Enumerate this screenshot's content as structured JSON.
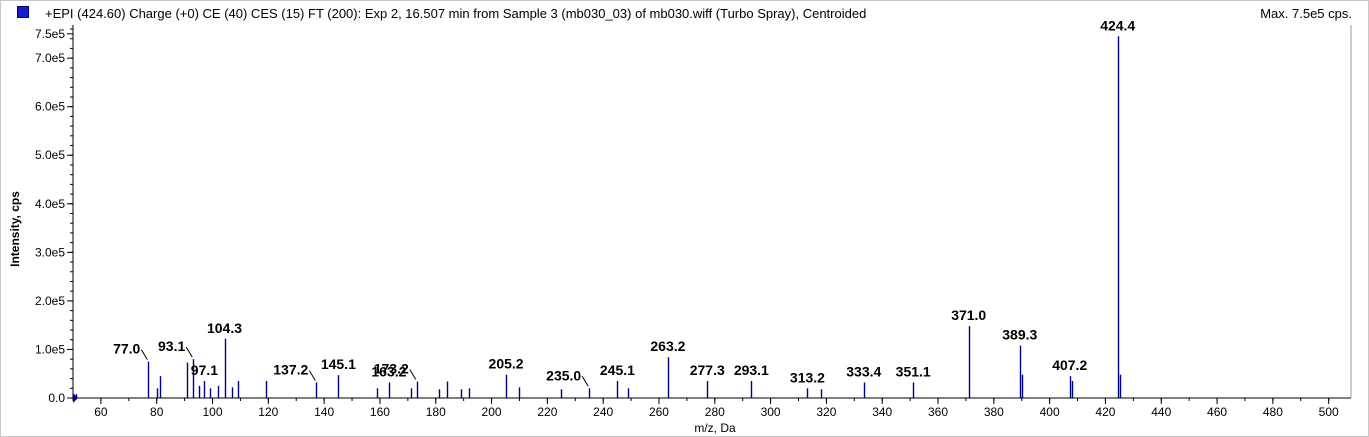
{
  "header": {
    "title": "+EPI (424.60) Charge (+0) CE (40) CES (15) FT (200): Exp 2, 16.507 min from Sample 3 (mb030_03) of mb030.wiff (Turbo Spray), Centroided",
    "max_label": "Max. 7.5e5 cps."
  },
  "chart_data": {
    "type": "bar",
    "xlabel": "m/z, Da",
    "ylabel": "Intensity, cps",
    "xlim": [
      50,
      508
    ],
    "ylim": [
      0,
      760000
    ],
    "x_ticks": [
      60,
      80,
      100,
      120,
      140,
      160,
      180,
      200,
      220,
      240,
      260,
      280,
      300,
      320,
      340,
      360,
      380,
      400,
      420,
      440,
      460,
      480,
      500
    ],
    "y_ticks": [
      {
        "value": 0,
        "label": "0.0"
      },
      {
        "value": 100000,
        "label": "1.0e5"
      },
      {
        "value": 200000,
        "label": "2.0e5"
      },
      {
        "value": 300000,
        "label": "3.0e5"
      },
      {
        "value": 400000,
        "label": "4.0e5"
      },
      {
        "value": 500000,
        "label": "5.0e5"
      },
      {
        "value": 600000,
        "label": "6.0e5"
      },
      {
        "value": 700000,
        "label": "7.0e5"
      },
      {
        "value": 750000,
        "label": "7.5e5"
      }
    ],
    "bar_color": "#00008b",
    "legend_color": "#1a1acc",
    "peaks": [
      {
        "mz": 51.0,
        "intensity": 8000
      },
      {
        "mz": 77.0,
        "intensity": 75000
      },
      {
        "mz": 80.0,
        "intensity": 20000
      },
      {
        "mz": 81.0,
        "intensity": 45000
      },
      {
        "mz": 91.0,
        "intensity": 73000
      },
      {
        "mz": 93.1,
        "intensity": 80000
      },
      {
        "mz": 95.0,
        "intensity": 25000
      },
      {
        "mz": 97.1,
        "intensity": 35000
      },
      {
        "mz": 99.0,
        "intensity": 20000
      },
      {
        "mz": 102.0,
        "intensity": 25000
      },
      {
        "mz": 104.3,
        "intensity": 122000
      },
      {
        "mz": 107.0,
        "intensity": 22000
      },
      {
        "mz": 109.0,
        "intensity": 35000
      },
      {
        "mz": 119.0,
        "intensity": 35000
      },
      {
        "mz": 137.2,
        "intensity": 32000
      },
      {
        "mz": 145.1,
        "intensity": 47000
      },
      {
        "mz": 159.0,
        "intensity": 20000
      },
      {
        "mz": 163.2,
        "intensity": 32000
      },
      {
        "mz": 171.0,
        "intensity": 20000
      },
      {
        "mz": 173.2,
        "intensity": 34000
      },
      {
        "mz": 181.0,
        "intensity": 18000
      },
      {
        "mz": 184.0,
        "intensity": 34000
      },
      {
        "mz": 189.0,
        "intensity": 18000
      },
      {
        "mz": 192.0,
        "intensity": 20000
      },
      {
        "mz": 205.2,
        "intensity": 48000
      },
      {
        "mz": 210.0,
        "intensity": 22000
      },
      {
        "mz": 225.0,
        "intensity": 18000
      },
      {
        "mz": 235.0,
        "intensity": 20000
      },
      {
        "mz": 245.1,
        "intensity": 35000
      },
      {
        "mz": 249.0,
        "intensity": 20000
      },
      {
        "mz": 263.2,
        "intensity": 84000
      },
      {
        "mz": 277.3,
        "intensity": 35000
      },
      {
        "mz": 293.1,
        "intensity": 35000
      },
      {
        "mz": 313.2,
        "intensity": 20000
      },
      {
        "mz": 318.0,
        "intensity": 18000
      },
      {
        "mz": 333.4,
        "intensity": 32000
      },
      {
        "mz": 351.1,
        "intensity": 32000
      },
      {
        "mz": 371.0,
        "intensity": 148000
      },
      {
        "mz": 389.3,
        "intensity": 108000
      },
      {
        "mz": 390.0,
        "intensity": 48000
      },
      {
        "mz": 407.2,
        "intensity": 45000
      },
      {
        "mz": 408.0,
        "intensity": 35000
      },
      {
        "mz": 424.4,
        "intensity": 745000
      },
      {
        "mz": 425.2,
        "intensity": 48000
      }
    ],
    "labels": [
      {
        "text": "77.0",
        "mz": 77.0,
        "intensity": 75000,
        "leader": true
      },
      {
        "text": "93.1",
        "mz": 93.1,
        "intensity": 80000,
        "leader": true
      },
      {
        "text": "97.1",
        "mz": 97.1,
        "intensity": 35000,
        "leader": false
      },
      {
        "text": "104.3",
        "mz": 104.3,
        "intensity": 122000,
        "leader": false
      },
      {
        "text": "137.2",
        "mz": 137.2,
        "intensity": 32000,
        "leader": true
      },
      {
        "text": "145.1",
        "mz": 145.1,
        "intensity": 47000,
        "leader": false
      },
      {
        "text": "163.2",
        "mz": 163.2,
        "intensity": 32000,
        "leader": false
      },
      {
        "text": "173.2",
        "mz": 173.2,
        "intensity": 34000,
        "leader": true
      },
      {
        "text": "205.2",
        "mz": 205.2,
        "intensity": 48000,
        "leader": false
      },
      {
        "text": "235.0",
        "mz": 235.0,
        "intensity": 20000,
        "leader": true
      },
      {
        "text": "245.1",
        "mz": 245.1,
        "intensity": 35000,
        "leader": false
      },
      {
        "text": "263.2",
        "mz": 263.2,
        "intensity": 84000,
        "leader": false
      },
      {
        "text": "277.3",
        "mz": 277.3,
        "intensity": 35000,
        "leader": false
      },
      {
        "text": "293.1",
        "mz": 293.1,
        "intensity": 35000,
        "leader": false
      },
      {
        "text": "313.2",
        "mz": 313.2,
        "intensity": 20000,
        "leader": false
      },
      {
        "text": "333.4",
        "mz": 333.4,
        "intensity": 32000,
        "leader": false
      },
      {
        "text": "351.1",
        "mz": 351.1,
        "intensity": 32000,
        "leader": false
      },
      {
        "text": "371.0",
        "mz": 371.0,
        "intensity": 148000,
        "leader": false
      },
      {
        "text": "389.3",
        "mz": 389.3,
        "intensity": 108000,
        "leader": false
      },
      {
        "text": "407.2",
        "mz": 407.2,
        "intensity": 45000,
        "leader": false
      },
      {
        "text": "424.4",
        "mz": 424.4,
        "intensity": 745000,
        "leader": false
      }
    ]
  }
}
